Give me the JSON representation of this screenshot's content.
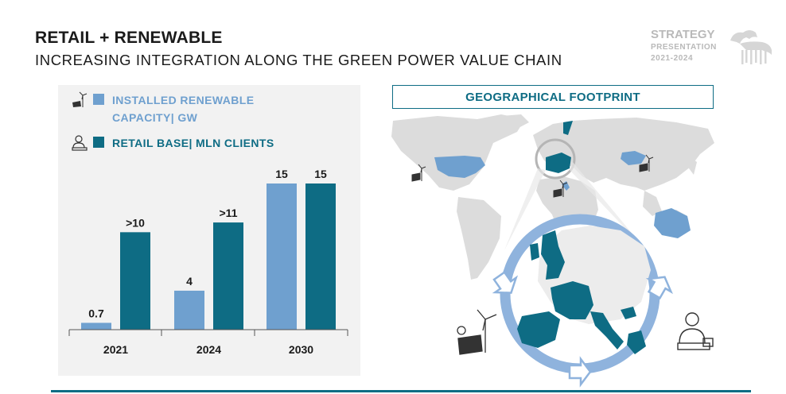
{
  "header": {
    "title": "RETAIL + RENEWABLE",
    "subtitle": "INCREASING INTEGRATION ALONG THE GREEN POWER VALUE CHAIN"
  },
  "brand": {
    "line1": "STRATEGY",
    "line2": "PRESENTATION",
    "line3": "2021-2024",
    "logo_icon": "six-legged-dog-logo-icon"
  },
  "colors": {
    "light_blue": "#6fa0cf",
    "dark_teal": "#0e6c84",
    "panel_bg": "#f2f2f2"
  },
  "geo": {
    "title": "GEOGRAPHICAL FOOTPRINT"
  },
  "chart_data": {
    "type": "bar",
    "categories": [
      "2021",
      "2024",
      "2030"
    ],
    "series": [
      {
        "name": "INSTALLED RENEWABLE CAPACITY| GW",
        "name_lines": [
          "INSTALLED RENEWABLE",
          "CAPACITY| GW"
        ],
        "values": [
          0.7,
          4,
          15
        ],
        "labels": [
          "0.7",
          "4",
          "15"
        ],
        "color": "#6fa0cf",
        "icon": "wind-solar-icon"
      },
      {
        "name": "RETAIL BASE| MLN CLIENTS",
        "name_lines": [
          "RETAIL BASE| MLN CLIENTS"
        ],
        "values": [
          10,
          11,
          15
        ],
        "labels": [
          ">10",
          ">11",
          "15"
        ],
        "color": "#0e6c84",
        "icon": "client-person-icon"
      }
    ],
    "ylim": [
      0,
      15
    ],
    "grid": false,
    "legend": "top-left"
  }
}
